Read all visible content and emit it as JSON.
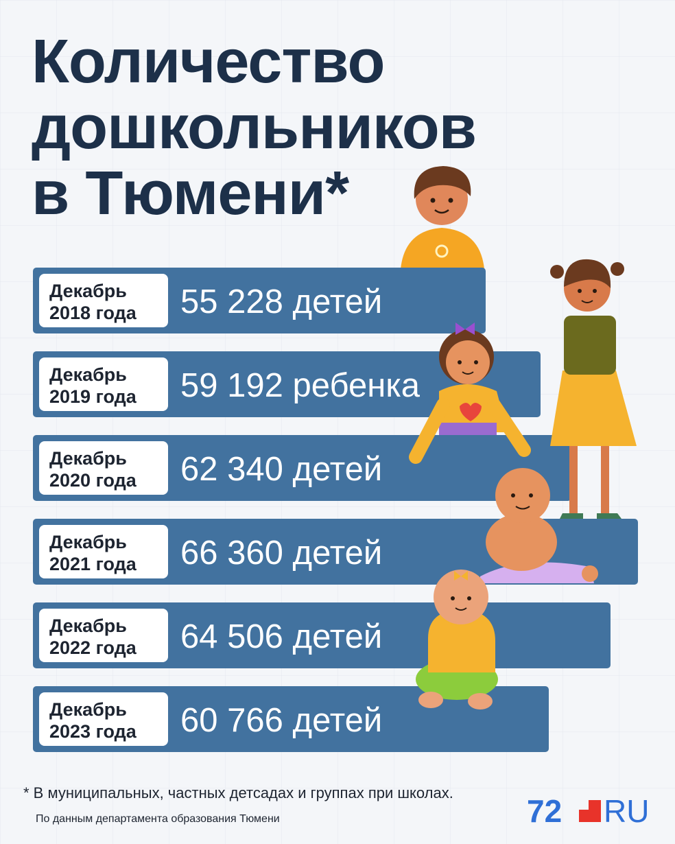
{
  "header": {
    "title_lines": [
      "Количество",
      "дошкольников",
      "в Тюмени*"
    ]
  },
  "rows": [
    {
      "month": "Декабрь",
      "year": "2018 года",
      "value": "55 228 детей"
    },
    {
      "month": "Декабрь",
      "year": "2019 года",
      "value": "59 192 ребенка"
    },
    {
      "month": "Декабрь",
      "year": "2020 года",
      "value": "62 340 детей"
    },
    {
      "month": "Декабрь",
      "year": "2021 года",
      "value": "66 360 детей"
    },
    {
      "month": "Декабрь",
      "year": "2022 года",
      "value": "64 506 детей"
    },
    {
      "month": "Декабрь",
      "year": "2023 года",
      "value": "60 766 детей"
    }
  ],
  "footer": {
    "note": "* В муниципальных, частных детсадах и группах при школах.",
    "source": "По данным департамента образования Тюмени",
    "logo_number": "72",
    "logo_text": "RU"
  }
}
